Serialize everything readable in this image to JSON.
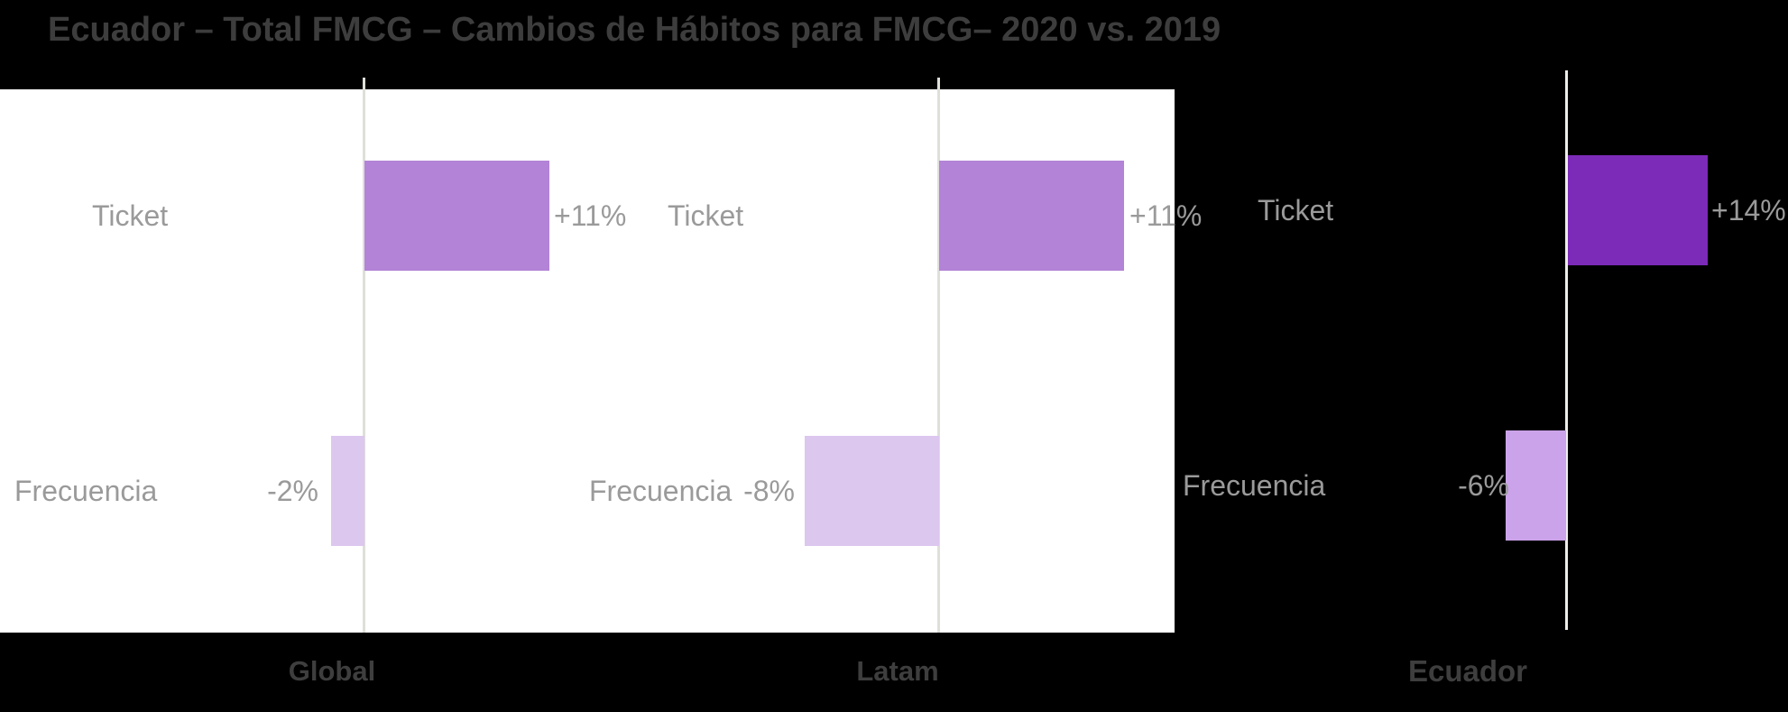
{
  "title": {
    "text": "Ecuador – Total FMCG – Cambios de Hábitos para FMCG– 2020 vs. 2019"
  },
  "colors": {
    "background": "#000000",
    "panel": "#FFFFFF",
    "axis_line": "#DFDFDA",
    "label_gray": "#9A9A9A",
    "heading_gray": "#3E3E3E",
    "purple_mid": "#B283D6",
    "lavender_light": "#DCC7EF",
    "purple_vivid": "#7C2AB8",
    "lavender_mid": "#CBA3EA"
  },
  "chart_data": {
    "type": "bar",
    "orientation": "horizontal",
    "title": "Ecuador – Total FMCG – Cambios de Hábitos para FMCG– 2020 vs. 2019",
    "value_axis": "percent",
    "gridlines": "zero-axis only",
    "panels": [
      {
        "name": "Global",
        "rows": [
          {
            "category": "Ticket",
            "value": 11,
            "display": "+11%",
            "color": "#B283D6"
          },
          {
            "category": "Frecuencia",
            "value": -2,
            "display": "-2%",
            "color": "#DCC7EF"
          }
        ]
      },
      {
        "name": "Latam",
        "rows": [
          {
            "category": "Ticket",
            "value": 11,
            "display": "+11%",
            "color": "#B283D6"
          },
          {
            "category": "Frecuencia",
            "value": -8,
            "display": "-8%",
            "color": "#DCC7EF"
          }
        ]
      },
      {
        "name": "Ecuador",
        "rows": [
          {
            "category": "Ticket",
            "value": 14,
            "display": "+14%",
            "color": "#7C2AB8"
          },
          {
            "category": "Frecuencia",
            "value": -6,
            "display": "-6%",
            "color": "#CBA3EA"
          }
        ]
      }
    ]
  }
}
